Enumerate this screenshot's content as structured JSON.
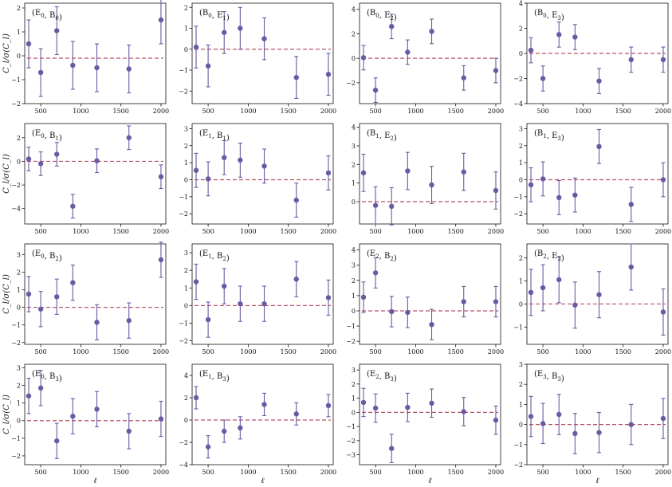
{
  "figure": {
    "ylabel": "C_l/σ(C_l)",
    "xlabel": "ℓ"
  },
  "style": {
    "point_color": "#6b59a3",
    "baseline_color": "#b5526a",
    "axes_color": "#111111"
  },
  "chart_data": [
    {
      "type": "scatter",
      "title": "(E0, B0)",
      "x": [
        350,
        500,
        700,
        900,
        1200,
        1600,
        2000
      ],
      "y": [
        0.5,
        -0.7,
        1.05,
        -0.4,
        -0.5,
        -0.55,
        1.5
      ],
      "yerr": [
        1,
        1,
        1,
        1,
        1,
        1,
        1
      ],
      "baseline": -0.1,
      "ylim": [
        -2,
        2.2
      ],
      "yticks": [
        -2,
        -1,
        0,
        1,
        2
      ],
      "xticks": [
        500,
        1000,
        1500,
        2000
      ],
      "xlim": [
        300,
        2060
      ]
    },
    {
      "type": "scatter",
      "title": "(B0, E1)",
      "x": [
        350,
        500,
        700,
        900,
        1200,
        1600,
        2000
      ],
      "y": [
        0.1,
        -0.8,
        0.8,
        1.0,
        0.5,
        -1.35,
        -1.2
      ],
      "yerr": [
        1,
        1,
        1,
        1,
        1,
        1,
        1
      ],
      "baseline": 0.0,
      "ylim": [
        -2.6,
        2.2
      ],
      "yticks": [
        -2,
        -1,
        0,
        1,
        2
      ],
      "xticks": [
        500,
        1000,
        1500,
        2000
      ],
      "xlim": [
        300,
        2060
      ]
    },
    {
      "type": "scatter",
      "title": "(B0, E2)",
      "x": [
        350,
        500,
        700,
        900,
        1200,
        1600,
        2000
      ],
      "y": [
        0.05,
        -2.6,
        2.6,
        0.5,
        2.2,
        -1.6,
        -1.0
      ],
      "yerr": [
        1,
        1,
        1,
        1,
        1,
        1,
        1
      ],
      "baseline": 0.0,
      "ylim": [
        -3.7,
        4.5
      ],
      "yticks": [
        -2,
        0,
        2,
        4
      ],
      "xticks": [
        500,
        1000,
        1500,
        2000
      ],
      "xlim": [
        300,
        2060
      ]
    },
    {
      "type": "scatter",
      "title": "(B0, E3)",
      "x": [
        350,
        500,
        700,
        900,
        1200,
        1600,
        2000
      ],
      "y": [
        0.25,
        -2.0,
        1.5,
        1.3,
        -2.2,
        -0.5,
        -0.5
      ],
      "yerr": [
        1,
        1,
        1,
        1,
        1,
        1,
        1
      ],
      "baseline": 0.0,
      "ylim": [
        -4,
        4
      ],
      "yticks": [
        -4,
        -2,
        0,
        2,
        4
      ],
      "xticks": [
        500,
        1000,
        1500,
        2000
      ],
      "xlim": [
        300,
        2060
      ]
    },
    {
      "type": "scatter",
      "title": "(E0, B1)",
      "x": [
        350,
        500,
        700,
        900,
        1200,
        1600,
        2000
      ],
      "y": [
        0.2,
        -0.2,
        0.6,
        -3.8,
        0.05,
        2.0,
        -1.3
      ],
      "yerr": [
        1,
        1,
        1,
        1,
        1,
        1,
        1
      ],
      "baseline": 0.0,
      "ylim": [
        -5.3,
        3.2
      ],
      "yticks": [
        -4,
        -2,
        0,
        2
      ],
      "xticks": [
        500,
        1000,
        1500,
        2000
      ],
      "xlim": [
        300,
        2060
      ]
    },
    {
      "type": "scatter",
      "title": "(E1, B1)",
      "x": [
        350,
        500,
        700,
        900,
        1200,
        1600,
        2000
      ],
      "y": [
        0.55,
        0.05,
        1.3,
        1.15,
        0.8,
        -1.2,
        0.4
      ],
      "yerr": [
        1,
        1,
        1,
        1,
        1,
        1,
        1
      ],
      "baseline": 0.0,
      "ylim": [
        -2.6,
        3.3
      ],
      "yticks": [
        -2,
        -1,
        0,
        1,
        2,
        3
      ],
      "xticks": [
        500,
        1000,
        1500,
        2000
      ],
      "xlim": [
        300,
        2060
      ]
    },
    {
      "type": "scatter",
      "title": "(B1, E2)",
      "x": [
        350,
        500,
        700,
        900,
        1200,
        1600,
        2000
      ],
      "y": [
        1.55,
        -0.2,
        -0.25,
        1.65,
        0.9,
        1.6,
        0.6
      ],
      "yerr": [
        1,
        1,
        1,
        1,
        1,
        1,
        1
      ],
      "baseline": 0.0,
      "ylim": [
        -1.2,
        4.2
      ],
      "yticks": [
        0,
        1,
        2,
        3,
        4
      ],
      "xticks": [
        500,
        1000,
        1500,
        2000
      ],
      "xlim": [
        300,
        2060
      ]
    },
    {
      "type": "scatter",
      "title": "(B1, E3)",
      "x": [
        350,
        500,
        700,
        900,
        1200,
        1600,
        2000
      ],
      "y": [
        -0.3,
        0.05,
        -1.05,
        -0.9,
        1.95,
        -1.45,
        0.0
      ],
      "yerr": [
        1,
        1,
        1,
        1,
        1,
        1,
        1
      ],
      "baseline": 0.0,
      "ylim": [
        -2.6,
        3.3
      ],
      "yticks": [
        -2,
        -1,
        0,
        1,
        2,
        3
      ],
      "xticks": [
        500,
        1000,
        1500,
        2000
      ],
      "xlim": [
        300,
        2060
      ]
    },
    {
      "type": "scatter",
      "title": "(E0, B2)",
      "x": [
        350,
        500,
        700,
        900,
        1200,
        1600,
        2000
      ],
      "y": [
        0.75,
        -0.1,
        0.6,
        1.4,
        -0.85,
        -0.75,
        2.7
      ],
      "yerr": [
        1,
        1,
        1,
        1,
        1,
        1,
        1
      ],
      "baseline": 0.0,
      "ylim": [
        -2.1,
        3.6
      ],
      "yticks": [
        -2,
        -1,
        0,
        1,
        2,
        3
      ],
      "xticks": [
        500,
        1000,
        1500,
        2000
      ],
      "xlim": [
        300,
        2060
      ]
    },
    {
      "type": "scatter",
      "title": "(E1, B2)",
      "x": [
        350,
        500,
        700,
        900,
        1200,
        1600,
        2000
      ],
      "y": [
        1.35,
        -0.8,
        1.1,
        0.1,
        0.1,
        1.5,
        0.45
      ],
      "yerr": [
        1,
        1,
        1,
        1,
        1,
        1,
        1
      ],
      "baseline": 0.0,
      "ylim": [
        -2.2,
        3.5
      ],
      "yticks": [
        -2,
        -1,
        0,
        1,
        2,
        3
      ],
      "xticks": [
        500,
        1000,
        1500,
        2000
      ],
      "xlim": [
        300,
        2060
      ]
    },
    {
      "type": "scatter",
      "title": "(E2, B2)",
      "x": [
        350,
        500,
        700,
        900,
        1200,
        1600,
        2000
      ],
      "y": [
        0.9,
        2.5,
        -0.05,
        -0.1,
        -0.9,
        0.6,
        0.6
      ],
      "yerr": [
        1,
        1,
        1,
        1,
        1,
        1,
        1
      ],
      "baseline": 0.0,
      "ylim": [
        -2.2,
        4.4
      ],
      "yticks": [
        -2,
        -1,
        0,
        1,
        2,
        3,
        4
      ],
      "xticks": [
        500,
        1000,
        1500,
        2000
      ],
      "xlim": [
        300,
        2060
      ]
    },
    {
      "type": "scatter",
      "title": "(B2, E3)",
      "x": [
        350,
        500,
        700,
        900,
        1200,
        1600,
        2000
      ],
      "y": [
        0.5,
        0.7,
        1.05,
        -0.05,
        0.4,
        1.6,
        -0.35
      ],
      "yerr": [
        1,
        1,
        1,
        1,
        1,
        1,
        1
      ],
      "baseline": 0.0,
      "ylim": [
        -1.75,
        2.6
      ],
      "yticks": [
        -1,
        0,
        1,
        2
      ],
      "xticks": [
        500,
        1000,
        1500,
        2000
      ],
      "xlim": [
        300,
        2060
      ]
    },
    {
      "type": "scatter",
      "title": "(E0, B3)",
      "x": [
        350,
        500,
        700,
        900,
        1200,
        1600,
        2000
      ],
      "y": [
        1.4,
        1.85,
        -1.15,
        0.25,
        0.65,
        -0.6,
        0.1
      ],
      "yerr": [
        1,
        1,
        1,
        1,
        1,
        1,
        1
      ],
      "baseline": 0.0,
      "ylim": [
        -2.5,
        3.2
      ],
      "yticks": [
        -2,
        -1,
        0,
        1,
        2,
        3
      ],
      "xticks": [
        500,
        1000,
        1500,
        2000
      ],
      "xlim": [
        300,
        2060
      ]
    },
    {
      "type": "scatter",
      "title": "(E1, B3)",
      "x": [
        350,
        500,
        700,
        900,
        1200,
        1600,
        2000
      ],
      "y": [
        2.0,
        -2.4,
        -1.0,
        -0.7,
        1.4,
        0.55,
        1.3
      ],
      "yerr": [
        1,
        1,
        1,
        1,
        1,
        1,
        1
      ],
      "baseline": 0.0,
      "ylim": [
        -4,
        5
      ],
      "yticks": [
        -4,
        -2,
        0,
        2,
        4
      ],
      "xticks": [
        500,
        1000,
        1500,
        2000
      ],
      "xlim": [
        300,
        2060
      ]
    },
    {
      "type": "scatter",
      "title": "(E2, B3)",
      "x": [
        350,
        500,
        700,
        900,
        1200,
        1600,
        2000
      ],
      "y": [
        0.7,
        0.3,
        -2.55,
        0.35,
        0.65,
        0.05,
        -0.55
      ],
      "yerr": [
        1,
        1,
        1,
        1,
        1,
        1,
        1
      ],
      "baseline": 0.0,
      "ylim": [
        -3.7,
        3.4
      ],
      "yticks": [
        -3,
        -2,
        -1,
        0,
        1,
        2,
        3
      ],
      "xticks": [
        500,
        1000,
        1500,
        2000
      ],
      "xlim": [
        300,
        2060
      ]
    },
    {
      "type": "scatter",
      "title": "(E3, B3)",
      "x": [
        350,
        500,
        700,
        900,
        1200,
        1600,
        2000
      ],
      "y": [
        0.4,
        0.05,
        0.5,
        -0.45,
        -0.4,
        0.0,
        0.3
      ],
      "yerr": [
        1,
        1,
        1,
        1,
        1,
        1,
        1
      ],
      "baseline": 0.0,
      "ylim": [
        -2,
        3
      ],
      "yticks": [
        -2,
        -1,
        0,
        1,
        2,
        3
      ],
      "xticks": [
        500,
        1000,
        1500,
        2000
      ],
      "xlim": [
        300,
        2060
      ]
    }
  ]
}
